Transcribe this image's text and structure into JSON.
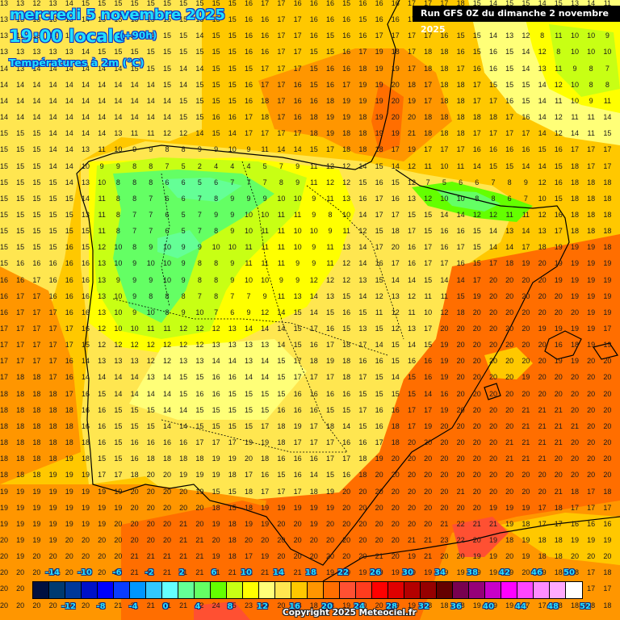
{
  "header": {
    "date": "mercredi 5 novembre 2025",
    "time": "19:00 locale",
    "lead": "(+90h)",
    "variable": "Températures à 2m (°C)"
  },
  "run_info": "Run GFS 0Z du dimanche 2 novembre 2025",
  "copyright": "Copyright 2025 Meteociel.fr",
  "legend": {
    "colors": [
      "#001040",
      "#003a70",
      "#00389a",
      "#0010c8",
      "#0000ff",
      "#0a3cff",
      "#0096ff",
      "#32c8ff",
      "#64ffff",
      "#64ff96",
      "#64ff64",
      "#64ff00",
      "#c8ff14",
      "#ffff00",
      "#ffff78",
      "#ffe650",
      "#ffc800",
      "#ff9600",
      "#ff6e00",
      "#ff5032",
      "#ff3c1e",
      "#ff0000",
      "#e00000",
      "#b40000",
      "#960000",
      "#640000",
      "#780050",
      "#960078",
      "#c800c8",
      "#ff00ff",
      "#ff46ff",
      "#ff8cff",
      "#ffaaff",
      "#ffffff"
    ],
    "top_labels": [
      "-14",
      "-10",
      "-6",
      "-2",
      "2",
      "6",
      "10",
      "14",
      "18",
      "22",
      "26",
      "30",
      "34",
      "38",
      "42",
      "46",
      "50"
    ],
    "bottom_labels": [
      "-12",
      "-8",
      "-4",
      "0",
      "4",
      "8",
      "12",
      "16",
      "20",
      "24",
      "28",
      "32",
      "36",
      "40",
      "44",
      "48",
      "52"
    ]
  },
  "grid": {
    "rows": [
      "13 13 12 13 14 15 15 15 15 15 15 15 15 15 15 16 17 17 16 16 16 15 16 16 16 17 17 17 18 15 14 15 15 14 15 13 14 11 11",
      "13 13 13 13 13 14 15 15 15 15 15 15 15 15 15 16 16 17 17 16 16 16 15 16 16 17 17 16 18 15 15 14 13 12 11 9 12 11 11",
      "13 13 13 13 13 14 15 15 15 15 15 15 14 15 15 16 16 17 17 16 15 16 16 17 17 17 17 16 15 15 14 13 12 8 11 10 10 9 9",
      "13 13 13 13 13 14 15 15 15 15 15 15 15 15 15 16 16 17 17 15 15 16 17 19 18 17 18 18 16 15 16 15 14 12 8 10 10 10 8",
      "14 13 14 14 14 14 14 14 15 15 15 14 14 15 15 15 17 17 17 15 16 16 18 19 19 17 18 18 17 16 16 15 14 13 11 9 8 7 9",
      "14 14 14 14 14 14 14 14 14 14 15 14 15 15 15 16 17 17 16 15 16 17 19 19 20 18 17 18 18 17 15 15 15 14 12 10 8 8 8",
      "14 14 14 14 14 14 14 14 14 14 14 15 15 15 15 16 18 17 16 16 18 19 19 19 20 19 17 18 18 17 17 16 15 14 11 10 9 11 11",
      "14 14 14 14 14 14 14 14 14 14 14 15 15 16 16 17 18 17 16 18 19 19 18 19 20 20 18 18 18 18 18 17 16 14 12 11 11 14 15",
      "15 15 15 14 14 14 14 13 11 11 12 12 14 15 14 17 17 17 17 18 19 18 18 19 19 21 18 18 18 17 17 17 17 14 12 14 11 15 16",
      "15 15 15 14 14 13 11 10 9 9 8 8 9 9 10 9 11 14 14 15 17 18 18 18 17 19 17 17 17 16 16 16 16 15 16 17 17 17 17",
      "15 15 15 14 14 10 9 9 8 8 7 5 2 4 4 4 5 7 9 11 12 12 14 15 14 12 11 10 11 14 15 15 14 14 15 18 17 17 17",
      "15 15 15 15 14 13 10 8 8 8 6 6 5 6 7 7 7 8 9 11 12 12 15 16 15 12 7 5 6 6 7 8 9 12 16 18 18 18 18",
      "15 15 15 15 15 14 11 8 8 7 6 6 7 8 9 9 9 10 10 9 11 13 16 17 16 13 12 10 10 8 8 6 7 10 15 18 18 18 18",
      "15 15 15 15 15 13 11 8 7 7 6 5 7 9 9 10 10 11 11 9 8 10 14 17 17 15 15 14 14 12 12 11 11 12 16 18 18 18 18",
      "15 15 15 15 15 15 11 8 7 7 6 5 7 8 9 10 11 11 10 10 9 11 12 15 18 17 15 16 16 15 14 13 14 13 17 18 18 18 18",
      "15 15 15 15 16 15 12 10 8 9 10 9 9 10 10 11 11 11 10 9 11 13 14 17 20 16 17 16 17 15 14 14 17 18 19 19 19 18 18",
      "15 16 16 16 16 16 13 10 9 10 10 9 8 8 9 11 11 11 9 9 11 12 14 16 17 16 17 17 16 15 17 18 19 20 19 19 19 19 19",
      "16 16 17 16 16 16 13 9 9 9 10 9 8 8 9 10 10 9 9 12 12 12 13 15 14 14 15 14 14 17 20 20 20 20 19 19 19 19 19",
      "16 17 17 16 16 16 13 10 9 8 8 8 7 8 7 7 9 11 13 14 13 15 14 12 13 12 11 11 15 19 20 20 20 20 20 19 19 19 19",
      "16 17 17 17 16 16 13 10 9 10 8 9 10 7 6 9 12 14 15 14 15 16 15 11 12 11 10 12 18 20 20 20 20 20 20 20 19 19 19",
      "17 17 17 17 17 16 12 10 10 11 11 12 12 12 13 14 14 14 15 17 16 15 13 15 12 13 17 20 20 20 20 20 20 19 19 19 19 17 19",
      "17 17 17 17 17 15 12 12 12 12 12 12 12 13 13 13 13 14 15 16 17 18 17 14 15 14 15 19 20 20 20 20 20 20 16 18 19 19 20",
      "17 17 17 17 16 14 13 13 13 12 12 13 13 14 14 13 14 15 17 18 19 18 16 16 15 16 16 19 20 20 20 20 20 20 19 19 20 20 20",
      "17 18 18 17 16 14 14 14 14 13 14 15 15 16 16 14 14 15 17 17 17 18 17 15 14 15 16 19 20 20 20 20 19 20 20 20 20 20 20",
      "18 18 18 18 17 16 15 14 14 14 14 15 16 16 15 15 15 15 16 16 16 16 15 15 15 15 14 16 20 20 20 20 20 20 20 20 20 20 20",
      "18 18 18 18 18 16 16 15 15 15 14 14 15 15 15 15 15 16 16 16 15 15 17 16 16 17 17 19 20 20 20 20 21 21 21 20 20 20 20",
      "18 18 18 18 18 16 16 15 15 15 14 14 15 15 15 15 17 18 19 17 18 14 15 16 18 17 19 20 20 20 20 20 21 21 21 21 20 20 20",
      "18 18 18 18 18 18 16 15 16 16 16 16 17 17 17 19 19 18 17 17 17 16 16 17 18 20 20 20 20 20 20 21 21 21 21 20 20 20 20",
      "18 18 18 18 19 18 15 15 16 18 18 18 18 19 19 20 18 16 16 16 17 17 18 19 20 20 20 20 20 20 20 21 21 21 20 20 20 20 20",
      "18 18 18 19 19 19 17 17 18 20 20 19 19 19 18 17 16 15 16 14 15 16 18 20 20 20 20 20 20 20 20 20 20 20 20 20 20 20 20",
      "19 19 19 19 19 19 19 19 20 20 20 20 19 15 15 18 17 17 17 18 19 20 20 20 20 20 20 20 21 20 20 20 20 20 21 18 17 18 18",
      "19 19 19 19 19 19 19 19 20 20 20 20 20 18 15 18 19 19 19 19 19 20 20 20 20 20 20 20 20 20 19 19 19 17 18 17 17 17 17",
      "19 19 19 19 19 19 19 20 20 20 20 21 20 19 18 19 19 20 20 19 20 20 20 20 20 20 20 21 22 21 21 19 18 17 17 16 16 16 16",
      "20 19 19 19 20 20 20 20 20 20 20 21 21 20 18 20 20 20 20 20 20 20 20 20 20 21 21 23 22 20 19 18 19 18 18 19 19 19 19",
      "20 19 20 20 20 20 20 20 21 21 21 21 21 19 18 17 19 20 20 20 20 20 20 21 20 19 21 20 20 19 19 20 19 18 18 20 20 20 20",
      "20 20 20 20 20 20 20 20 21 21 21 21 21 21 21 21 21 21 21 21 19 19 19 19 19 19 19 19 19 19 19 19 20 19 18 18 17 18 18",
      "20 20 20 20 20 20 20 20 21 21 21 21 21 21 21 21 21 21 21 21 20 19 19 19 19 19 18 17 17 18 18 19 18 18 19 18 17 17 18",
      "20 20 20 20 20 20 21 21 21 21 21 21 22 24 25 23 20 20 18 18 18 19 20 20 19 19 18 18 18 19 19 19 17 17 18 18 18 18 20"
    ]
  }
}
